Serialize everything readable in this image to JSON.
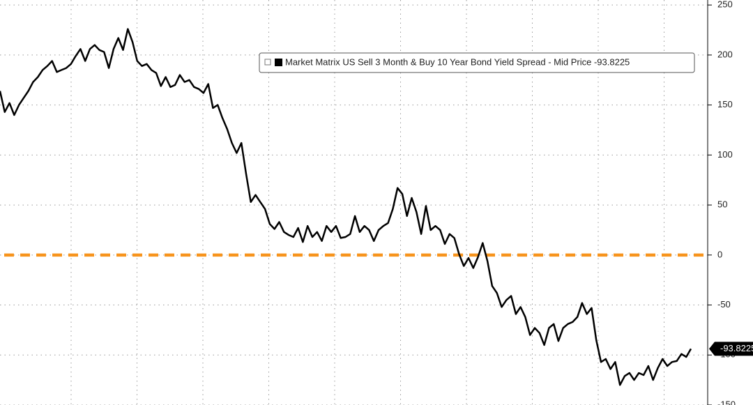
{
  "chart_data": {
    "type": "line",
    "categories": [
      null,
      null,
      null,
      null,
      null,
      null,
      null,
      null,
      null,
      null,
      null,
      null,
      null,
      null,
      null,
      null,
      null,
      null,
      null,
      null,
      null,
      null,
      null,
      null,
      null,
      null,
      null,
      null,
      null,
      null,
      null,
      null,
      null,
      null,
      null,
      null,
      null,
      null,
      null,
      null,
      null,
      null,
      null,
      null,
      null,
      null,
      null,
      null,
      null,
      null,
      null,
      null,
      null,
      null,
      null,
      null,
      null,
      null,
      null,
      null,
      null,
      null,
      null,
      null,
      null,
      null,
      null,
      null,
      null,
      null,
      null,
      null,
      null,
      null,
      null,
      null,
      null,
      null,
      null,
      null,
      null,
      null,
      null,
      null,
      null,
      null,
      null,
      null,
      null,
      null,
      null,
      null,
      null,
      null,
      null,
      null,
      null,
      null,
      null,
      null,
      null,
      null,
      null,
      null,
      null,
      null,
      null,
      null,
      null,
      null,
      null,
      null,
      null,
      null,
      null,
      null,
      null,
      null,
      null,
      null,
      null,
      null,
      null,
      null,
      null,
      null,
      null,
      null,
      null,
      null,
      null,
      null,
      null,
      null,
      null,
      null,
      null,
      null,
      null,
      null,
      null,
      null,
      null,
      null,
      null,
      null,
      null
    ],
    "series": [
      {
        "name": "Market Matrix US Sell 3 Month & Buy 10 Year Bond Yield Spread - Mid Price",
        "color": "#000000",
        "values": [
          164,
          143,
          152,
          140,
          150,
          157,
          164,
          173,
          178,
          185,
          189,
          194,
          183,
          185,
          187,
          191,
          199,
          206,
          194,
          206,
          210,
          205,
          203,
          187,
          206,
          217,
          205,
          226,
          213,
          194,
          189,
          191,
          185,
          182,
          169,
          178,
          168,
          170,
          180,
          173,
          175,
          168,
          166,
          162,
          171,
          147,
          150,
          137,
          126,
          112,
          102,
          112,
          81,
          53,
          60,
          53,
          46,
          31,
          26,
          33,
          23,
          20,
          18,
          27,
          13,
          29,
          18,
          23,
          14,
          29,
          23,
          29,
          17,
          18,
          21,
          39,
          23,
          29,
          25,
          14,
          25,
          29,
          32,
          46,
          67,
          61,
          39,
          57,
          43,
          21,
          49,
          25,
          29,
          25,
          11,
          21,
          17,
          1,
          -11,
          -3,
          -13,
          -2,
          12,
          -6,
          -31,
          -38,
          -52,
          -45,
          -41,
          -59,
          -52,
          -62,
          -80,
          -73,
          -78,
          -90,
          -73,
          -69,
          -86,
          -73,
          -69,
          -67,
          -62,
          -48,
          -59,
          -53,
          -85,
          -107,
          -104,
          -114,
          -107,
          -130,
          -121,
          -118,
          -125,
          -118,
          -120,
          -111,
          -125,
          -113,
          -104,
          -111,
          -107,
          -106,
          -99,
          -102,
          -93.8225
        ]
      }
    ],
    "hline": {
      "value": 0,
      "color": "#f7941d"
    },
    "ylim": [
      -150,
      255
    ],
    "yticks": [
      250,
      200,
      150,
      100,
      50,
      0,
      -50,
      -100,
      -150
    ],
    "grid": true
  }
}
